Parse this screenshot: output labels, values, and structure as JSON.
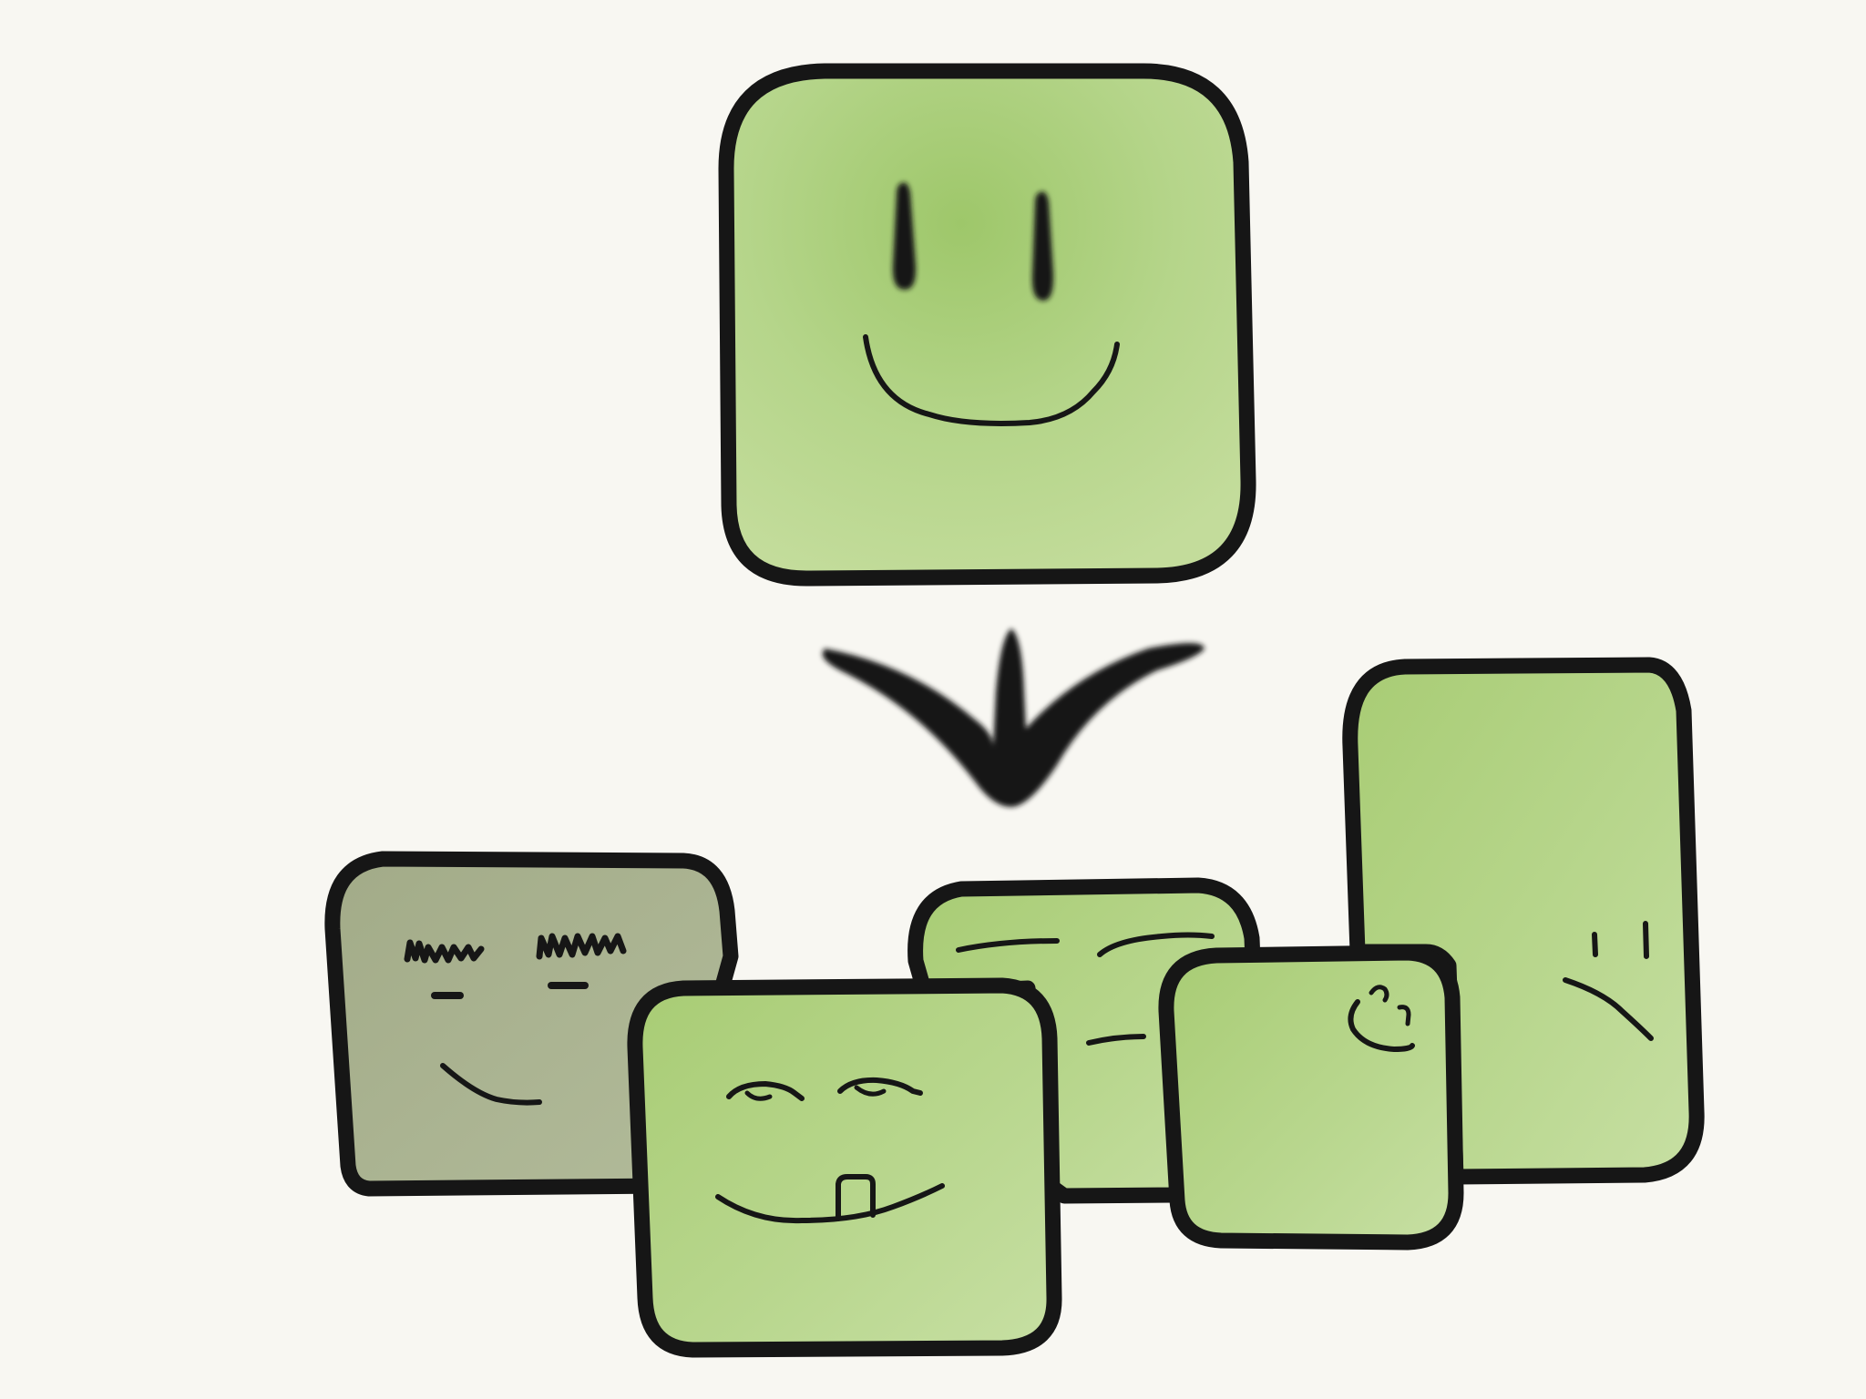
{
  "canvas": {
    "background": "#f8f7f2"
  },
  "colors": {
    "outline": "#161616",
    "face_green": "#b5d58a",
    "face_green_light": "#c3dc9b",
    "face_green_dark": "#9ec76a",
    "face_gray": "#b2bb9a",
    "face_gray_dark": "#a2ab88"
  },
  "illustration": {
    "source_face": {
      "name": "happy-square-face",
      "expression": "smile"
    },
    "arrow": {
      "name": "split-arrow-icon",
      "direction": "down"
    },
    "result_faces": [
      {
        "name": "grumpy-gray-face",
        "expression": "bushy-brows-frown"
      },
      {
        "name": "wide-flat-face",
        "expression": "flat-lines"
      },
      {
        "name": "tall-face",
        "expression": "sad"
      },
      {
        "name": "small-side-face",
        "expression": "side-smile"
      },
      {
        "name": "buck-tooth-face",
        "expression": "sleepy-grin"
      }
    ]
  }
}
